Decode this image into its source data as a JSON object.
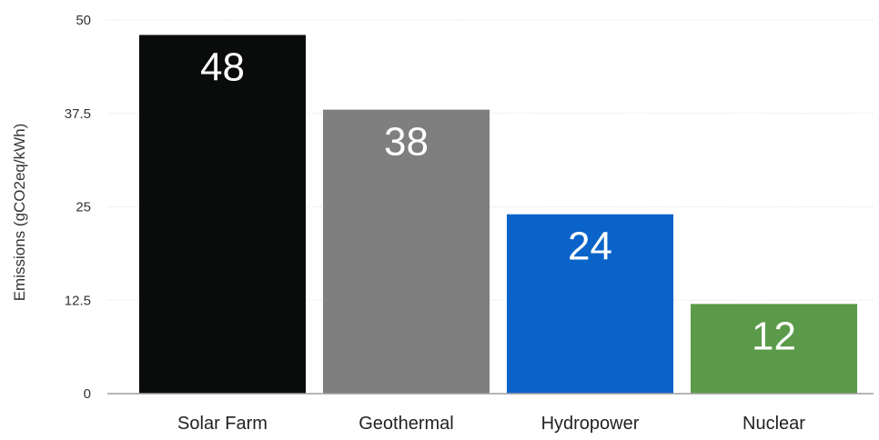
{
  "chart_data": {
    "type": "bar",
    "title": "",
    "xlabel": "",
    "ylabel": "Emissions (gCO2eq/kWh)",
    "categories": [
      "Solar Farm",
      "Geothermal",
      "Hydropower",
      "Nuclear"
    ],
    "values": [
      48,
      38,
      24,
      12
    ],
    "data_labels": [
      "48",
      "38",
      "24",
      "12"
    ],
    "colors": [
      "#0a0c0b",
      "#7f7f7f",
      "#0a63c9",
      "#5a9a48"
    ],
    "ylim": [
      0,
      50
    ],
    "yticks": [
      0,
      12.5,
      25,
      37.5,
      50
    ],
    "ytick_labels": [
      "0",
      "12.5",
      "25",
      "37.5",
      "50"
    ],
    "grid": true,
    "legend": "none"
  }
}
